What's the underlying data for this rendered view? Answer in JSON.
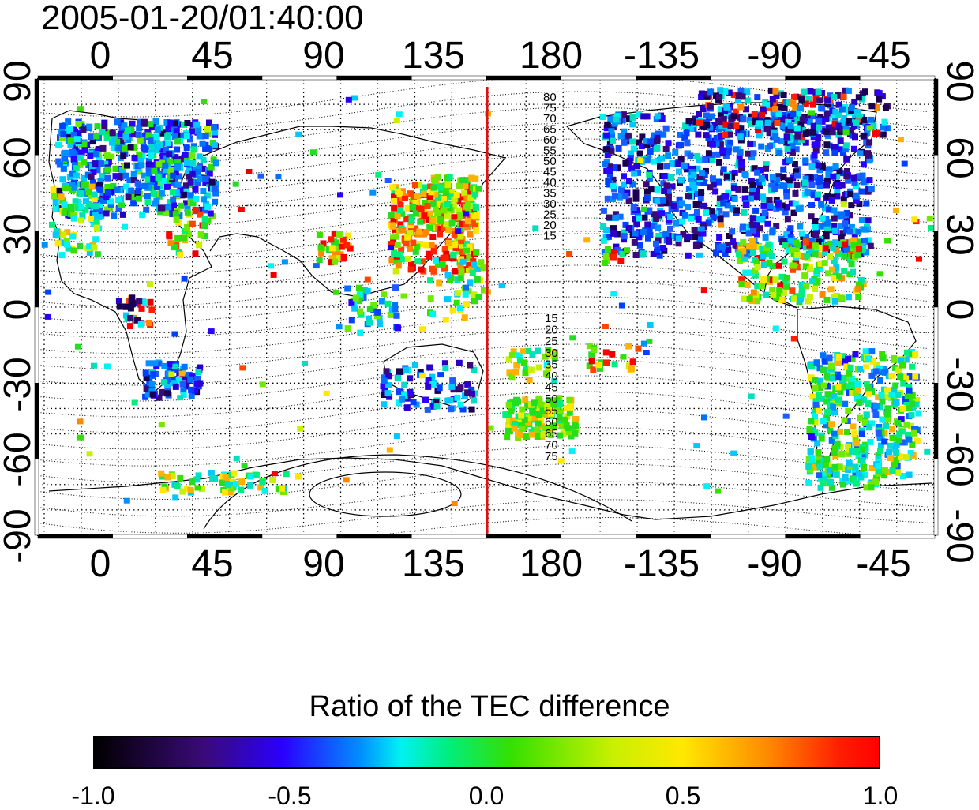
{
  "title": "2005-01-20/01:40:00",
  "map": {
    "lon_ticks": [
      "0",
      "45",
      "90",
      "135",
      "180",
      "-135",
      "-90",
      "-45"
    ],
    "lat_ticks": [
      "90",
      "60",
      "30",
      "0",
      "-30",
      "-60",
      "-90"
    ],
    "contour_labels_north": [
      "80",
      "75",
      "70",
      "65",
      "60",
      "55",
      "50",
      "45",
      "40",
      "35",
      "30",
      "25",
      "20",
      "15"
    ],
    "contour_labels_south": [
      "15",
      "20",
      "25",
      "30",
      "35",
      "40",
      "45",
      "50",
      "55",
      "60",
      "65",
      "70",
      "75"
    ],
    "marker_color": "#e01010"
  },
  "colorbar": {
    "title": "Ratio of the TEC difference",
    "ticks": [
      "-1.0",
      "-0.5",
      "0.0",
      "0.5",
      "1.0"
    ]
  }
}
